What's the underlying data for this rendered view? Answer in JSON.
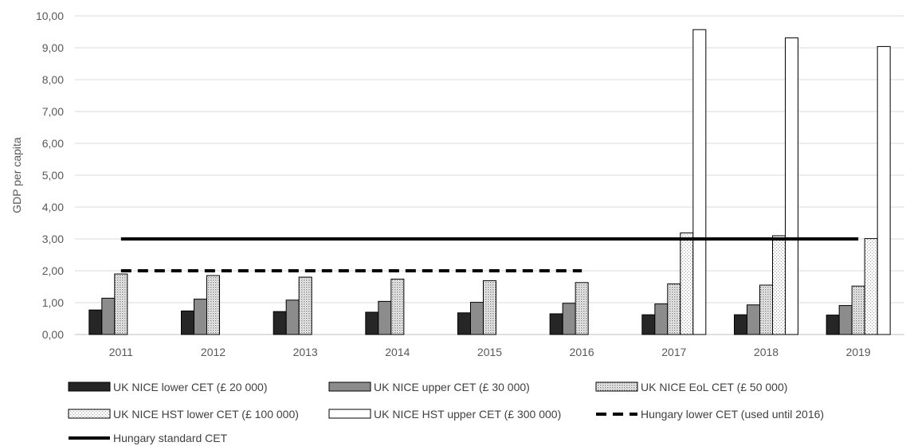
{
  "chart_data": {
    "type": "bar",
    "title": "",
    "xlabel": "",
    "ylabel": "GDP per capita",
    "ylim": [
      0,
      10
    ],
    "yticks": [
      "0,00",
      "1,00",
      "2,00",
      "3,00",
      "4,00",
      "5,00",
      "6,00",
      "7,00",
      "8,00",
      "9,00",
      "10,00"
    ],
    "categories": [
      "2011",
      "2012",
      "2013",
      "2014",
      "2015",
      "2016",
      "2017",
      "2018",
      "2019"
    ],
    "grid": "horizontal",
    "legend_position": "bottom",
    "series": [
      {
        "name": "UK NICE lower CET (£ 20 000)",
        "kind": "bar",
        "fill": "dark",
        "color": "#262626",
        "values": [
          0.77,
          0.74,
          0.72,
          0.7,
          0.68,
          0.65,
          0.62,
          0.62,
          0.61
        ]
      },
      {
        "name": "UK NICE upper CET (£ 30 000)",
        "kind": "bar",
        "fill": "gray",
        "color": "#8c8c8c",
        "values": [
          1.14,
          1.11,
          1.08,
          1.04,
          1.01,
          0.98,
          0.96,
          0.93,
          0.91
        ]
      },
      {
        "name": "UK NICE EoL CET (£ 50 000)",
        "kind": "bar",
        "fill": "dense-dots",
        "color": "#bfbfbf",
        "values": [
          1.9,
          1.85,
          1.8,
          1.74,
          1.69,
          1.63,
          1.59,
          1.55,
          1.52
        ]
      },
      {
        "name": "UK NICE HST lower CET (£ 100 000)",
        "kind": "bar",
        "fill": "light-dots",
        "color": "#e0e0e0",
        "values": [
          null,
          null,
          null,
          null,
          null,
          null,
          3.19,
          3.1,
          3.01
        ]
      },
      {
        "name": "UK NICE HST upper CET (£ 300 000)",
        "kind": "bar",
        "fill": "white",
        "color": "#ffffff",
        "values": [
          null,
          null,
          null,
          null,
          null,
          null,
          9.57,
          9.31,
          9.04
        ]
      },
      {
        "name": "Hungary lower CET (used until 2016)",
        "kind": "line",
        "style": "dashed",
        "color": "#000000",
        "values": [
          2,
          2,
          2,
          2,
          2,
          2,
          null,
          null,
          null
        ]
      },
      {
        "name": "Hungary standard CET",
        "kind": "line",
        "style": "solid",
        "color": "#000000",
        "values": [
          3,
          3,
          3,
          3,
          3,
          3,
          3,
          3,
          3
        ]
      }
    ]
  }
}
